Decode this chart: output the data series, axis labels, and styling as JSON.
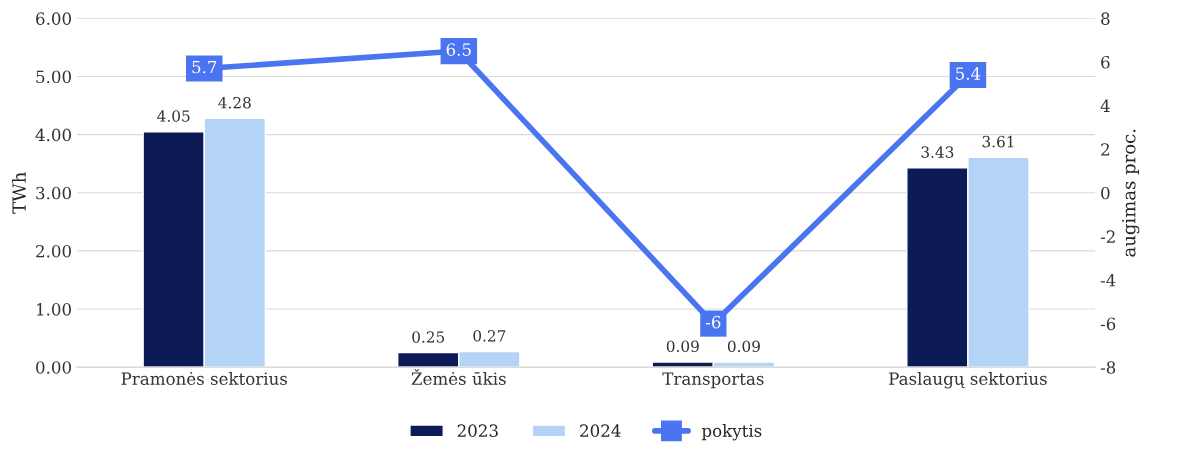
{
  "chart_data": {
    "type": "bar",
    "ylabel": "TWh",
    "y2label": "augimas proc.",
    "categories": [
      "Pramonės sektorius",
      "Žemės ūkis",
      "Transportas",
      "Paslaugų sektorius"
    ],
    "series": [
      {
        "name": "2023",
        "color": "#0c1a56",
        "values": [
          4.05,
          0.25,
          0.09,
          3.43
        ]
      },
      {
        "name": "2024",
        "color": "#b4d4f7",
        "values": [
          4.28,
          0.27,
          0.09,
          3.61
        ]
      },
      {
        "name": "pokytis",
        "type": "line",
        "axis": "y2",
        "color": "#4a74f0",
        "values": [
          5.7,
          6.5,
          -6,
          5.4
        ]
      }
    ],
    "ylim": [
      0,
      6
    ],
    "yticks": [
      {
        "value": 0,
        "label": "0.00"
      },
      {
        "value": 1,
        "label": "1.00"
      },
      {
        "value": 2,
        "label": "2.00"
      },
      {
        "value": 3,
        "label": "3.00"
      },
      {
        "value": 4,
        "label": "4.00"
      },
      {
        "value": 5,
        "label": "5.00"
      },
      {
        "value": 6,
        "label": "6.00"
      }
    ],
    "y2lim": [
      -8,
      8
    ],
    "y2ticks": [
      -8,
      -6,
      -4,
      -2,
      0,
      2,
      4,
      6,
      8
    ],
    "grid": "y",
    "legend": "bottom",
    "data_labels": true,
    "marker": "square"
  }
}
